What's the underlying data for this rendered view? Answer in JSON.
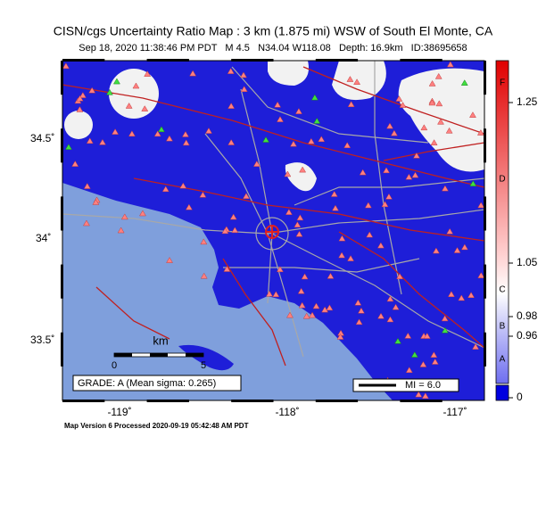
{
  "header": {
    "title": "CISN/cgs Uncertainty Ratio Map : 3 km (1.875 mi) WSW of South El Monte, CA",
    "subtitle": "Sep 18, 2020 11:38:46 PM PDT   M 4.5   N34.04 W118.08   Depth: 16.9km   ID:38695658"
  },
  "map": {
    "lat_labels": [
      "34.5˚",
      "34˚",
      "33.5˚"
    ],
    "lon_labels": [
      "-119˚",
      "-118˚",
      "-117˚"
    ],
    "scale": {
      "unit": "km",
      "ticks": [
        "0",
        "5"
      ]
    },
    "grade": "GRADE: A (Mean sigma: 0.265)",
    "legend": "MI = 6.0"
  },
  "colorbar": {
    "grades": [
      "F",
      "D",
      "C",
      "B",
      "A"
    ],
    "labels": [
      "1.25",
      "1.05",
      "0.98",
      "0.96",
      "0"
    ]
  },
  "footer": "Map Version 6 Processed 2020-09-19 05:42:48 AM PDT"
}
